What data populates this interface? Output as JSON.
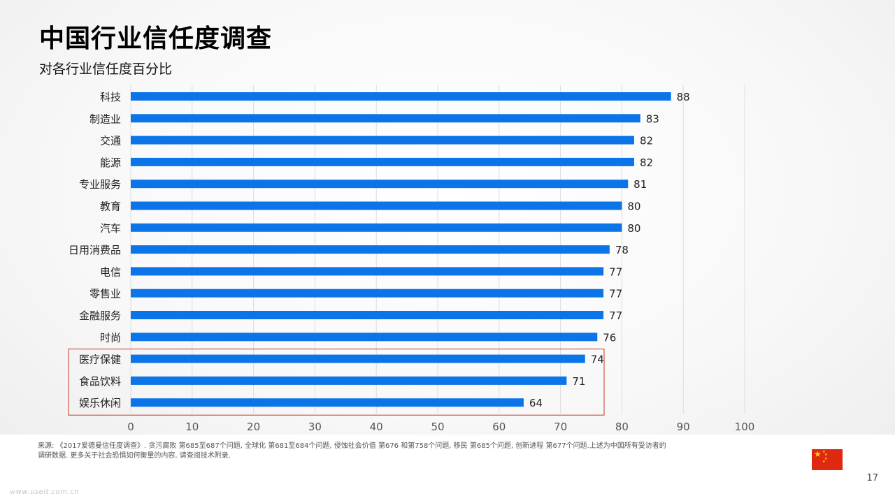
{
  "page": {
    "title": "中国行业信任度调查",
    "subtitle": "对各行业信任度百分比",
    "footnote": "来源: 《2017爱德曼信任度调查》. 贪污腐败 第685至687个问题, 全球化 第681至684个问题, 侵蚀社会价值 第676 和第758个问题, 移民 第685个问题, 创新进程 第677个问题.上述为中国所有受访者的调研数据. 更多关于社会恐惧如何衡量的内容, 请查阅技术附录.",
    "page_number": "17",
    "watermark": "www.useit.com.cn",
    "flag_icon": "china-flag-icon"
  },
  "colors": {
    "bar": "#0a74e8",
    "highlight_border": "#c0392b",
    "grid": "#dddddd",
    "label_text": "#222222"
  },
  "chart_data": {
    "type": "bar",
    "orientation": "horizontal",
    "title": "",
    "xlabel": "",
    "ylabel": "",
    "categories": [
      "科技",
      "制造业",
      "交通",
      "能源",
      "专业服务",
      "教育",
      "汽车",
      "日用消费品",
      "电信",
      "零售业",
      "金融服务",
      "时尚",
      "医疗保健",
      "食品饮料",
      "娱乐休闲"
    ],
    "values": [
      88,
      83,
      82,
      82,
      81,
      80,
      80,
      78,
      77,
      77,
      77,
      76,
      74,
      71,
      64
    ],
    "xlim": [
      0,
      100
    ],
    "xticks": [
      "0",
      "10",
      "20",
      "30",
      "40",
      "50",
      "60",
      "70",
      "80",
      "90",
      "100"
    ],
    "data_labels": true,
    "grid": true,
    "legend": "none",
    "highlighted_categories": [
      "医疗保健",
      "食品饮料",
      "娱乐休闲"
    ]
  }
}
